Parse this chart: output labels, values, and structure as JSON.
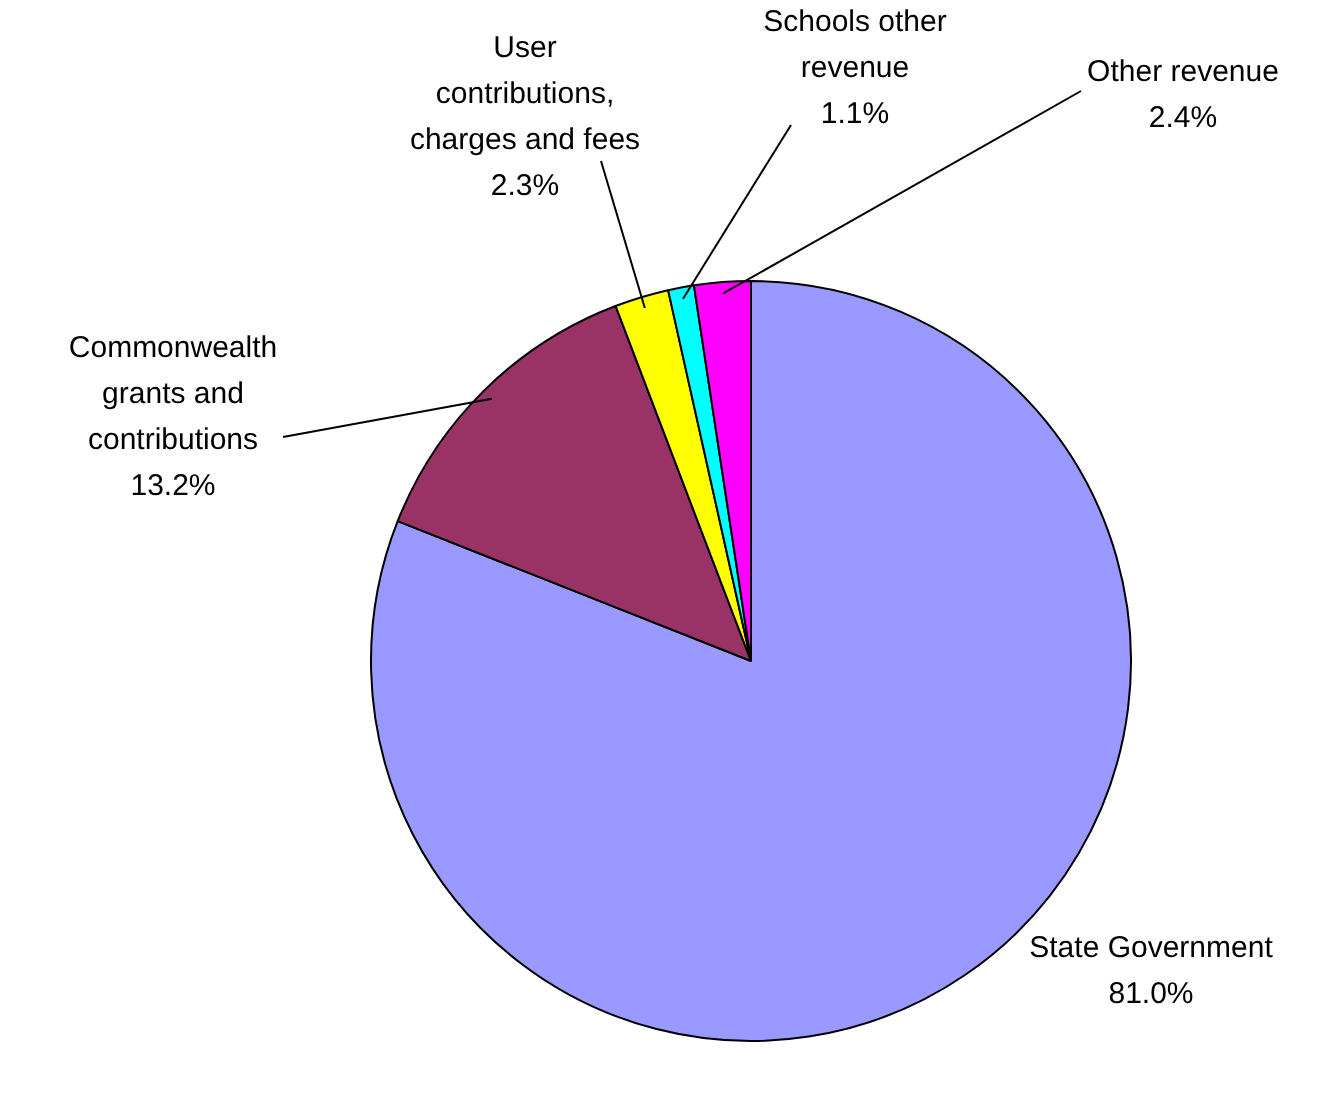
{
  "chart_data": {
    "type": "pie",
    "categories": [
      "State Government",
      "Commonwealth grants and contributions",
      "User contributions, charges and fees",
      "Schools other revenue",
      "Other revenue"
    ],
    "values": [
      81.0,
      13.2,
      2.3,
      1.1,
      2.4
    ],
    "value_labels": [
      "81.0%",
      "13.2%",
      "2.3%",
      "1.1%",
      "2.4%"
    ],
    "colors": [
      "#9999ff",
      "#993366",
      "#ffff00",
      "#00ffff",
      "#ff00ff"
    ],
    "legend": false
  }
}
